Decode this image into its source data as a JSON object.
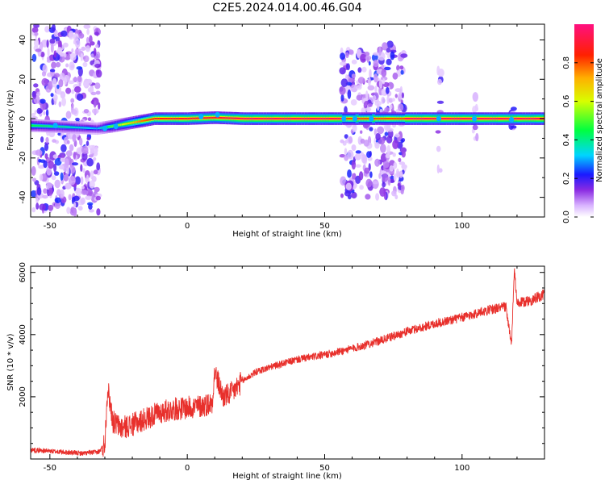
{
  "title": "C2E5.2024.014.00.46.G04",
  "chart_data": [
    {
      "type": "heatmap",
      "xlabel": "Height of straight line (km)",
      "ylabel": "Frequency (Hz)",
      "xlim": [
        -57,
        130
      ],
      "ylim": [
        -50,
        48
      ],
      "x_ticks": [
        -50,
        0,
        50,
        100
      ],
      "y_ticks": [
        -40,
        -20,
        0,
        20,
        40
      ],
      "colorbar": {
        "label": "Normalized spectral amplitude",
        "range": [
          0,
          1
        ],
        "ticks": [
          0.0,
          0.2,
          0.4,
          0.6,
          0.8
        ]
      },
      "main_line": [
        {
          "x": -57,
          "y": -3.5,
          "amp": 0.45
        },
        {
          "x": -48,
          "y": -4,
          "amp": 0.4
        },
        {
          "x": -33,
          "y": -5,
          "amp": 0.3
        },
        {
          "x": -28,
          "y": -4,
          "amp": 0.5
        },
        {
          "x": -24,
          "y": -3,
          "amp": 0.6
        },
        {
          "x": -18,
          "y": -1.5,
          "amp": 0.75
        },
        {
          "x": -12,
          "y": 0,
          "amp": 0.85
        },
        {
          "x": 0,
          "y": 0,
          "amp": 0.9
        },
        {
          "x": 10,
          "y": 0.5,
          "amp": 0.9
        },
        {
          "x": 20,
          "y": 0,
          "amp": 0.95
        },
        {
          "x": 55,
          "y": 0,
          "amp": 0.95
        },
        {
          "x": 80,
          "y": 0,
          "amp": 0.95
        },
        {
          "x": 130,
          "y": 0,
          "amp": 0.95
        }
      ],
      "noise_regions": [
        {
          "x": [
            -56,
            -32
          ],
          "y": [
            -48,
            48
          ],
          "density": 0.9
        },
        {
          "x": [
            56,
            61
          ],
          "y": [
            -40,
            35
          ],
          "density": 0.8
        },
        {
          "x": [
            62,
            67
          ],
          "y": [
            -40,
            35
          ],
          "density": 0.8
        },
        {
          "x": [
            68,
            79
          ],
          "y": [
            -40,
            38
          ],
          "density": 0.9
        },
        {
          "x": [
            91,
            92.5
          ],
          "y": [
            -28,
            28
          ],
          "density": 0.4
        },
        {
          "x": [
            104,
            105.5
          ],
          "y": [
            -12,
            12
          ],
          "density": 0.4
        },
        {
          "x": [
            117.5,
            119
          ],
          "y": [
            -5,
            5
          ],
          "density": 0.4
        }
      ]
    },
    {
      "type": "line",
      "xlabel": "Height of straight line (km)",
      "ylabel": "SNR (10 * v/v)",
      "xlim": [
        -57,
        130
      ],
      "ylim": [
        0,
        6200
      ],
      "x_ticks": [
        -50,
        0,
        50,
        100
      ],
      "y_ticks": [
        2000,
        4000,
        6000
      ],
      "color": "#e8302c",
      "series": [
        {
          "x": [
            -57,
            -45,
            -38,
            -32,
            -30,
            -29,
            -27,
            -24,
            -20,
            -15,
            -10,
            -5,
            0,
            5,
            9,
            10,
            13,
            16,
            20,
            25,
            30,
            40,
            50,
            60,
            70,
            80,
            90,
            100,
            110,
            116,
            118,
            119,
            120,
            125,
            130
          ],
          "y": [
            300,
            220,
            180,
            230,
            500,
            2300,
            1200,
            1000,
            1100,
            1300,
            1500,
            1600,
            1650,
            1700,
            1800,
            2800,
            2000,
            2100,
            2500,
            2800,
            2950,
            3200,
            3350,
            3550,
            3800,
            4100,
            4350,
            4550,
            4800,
            4900,
            3600,
            6100,
            5000,
            5100,
            5300
          ]
        }
      ]
    }
  ]
}
